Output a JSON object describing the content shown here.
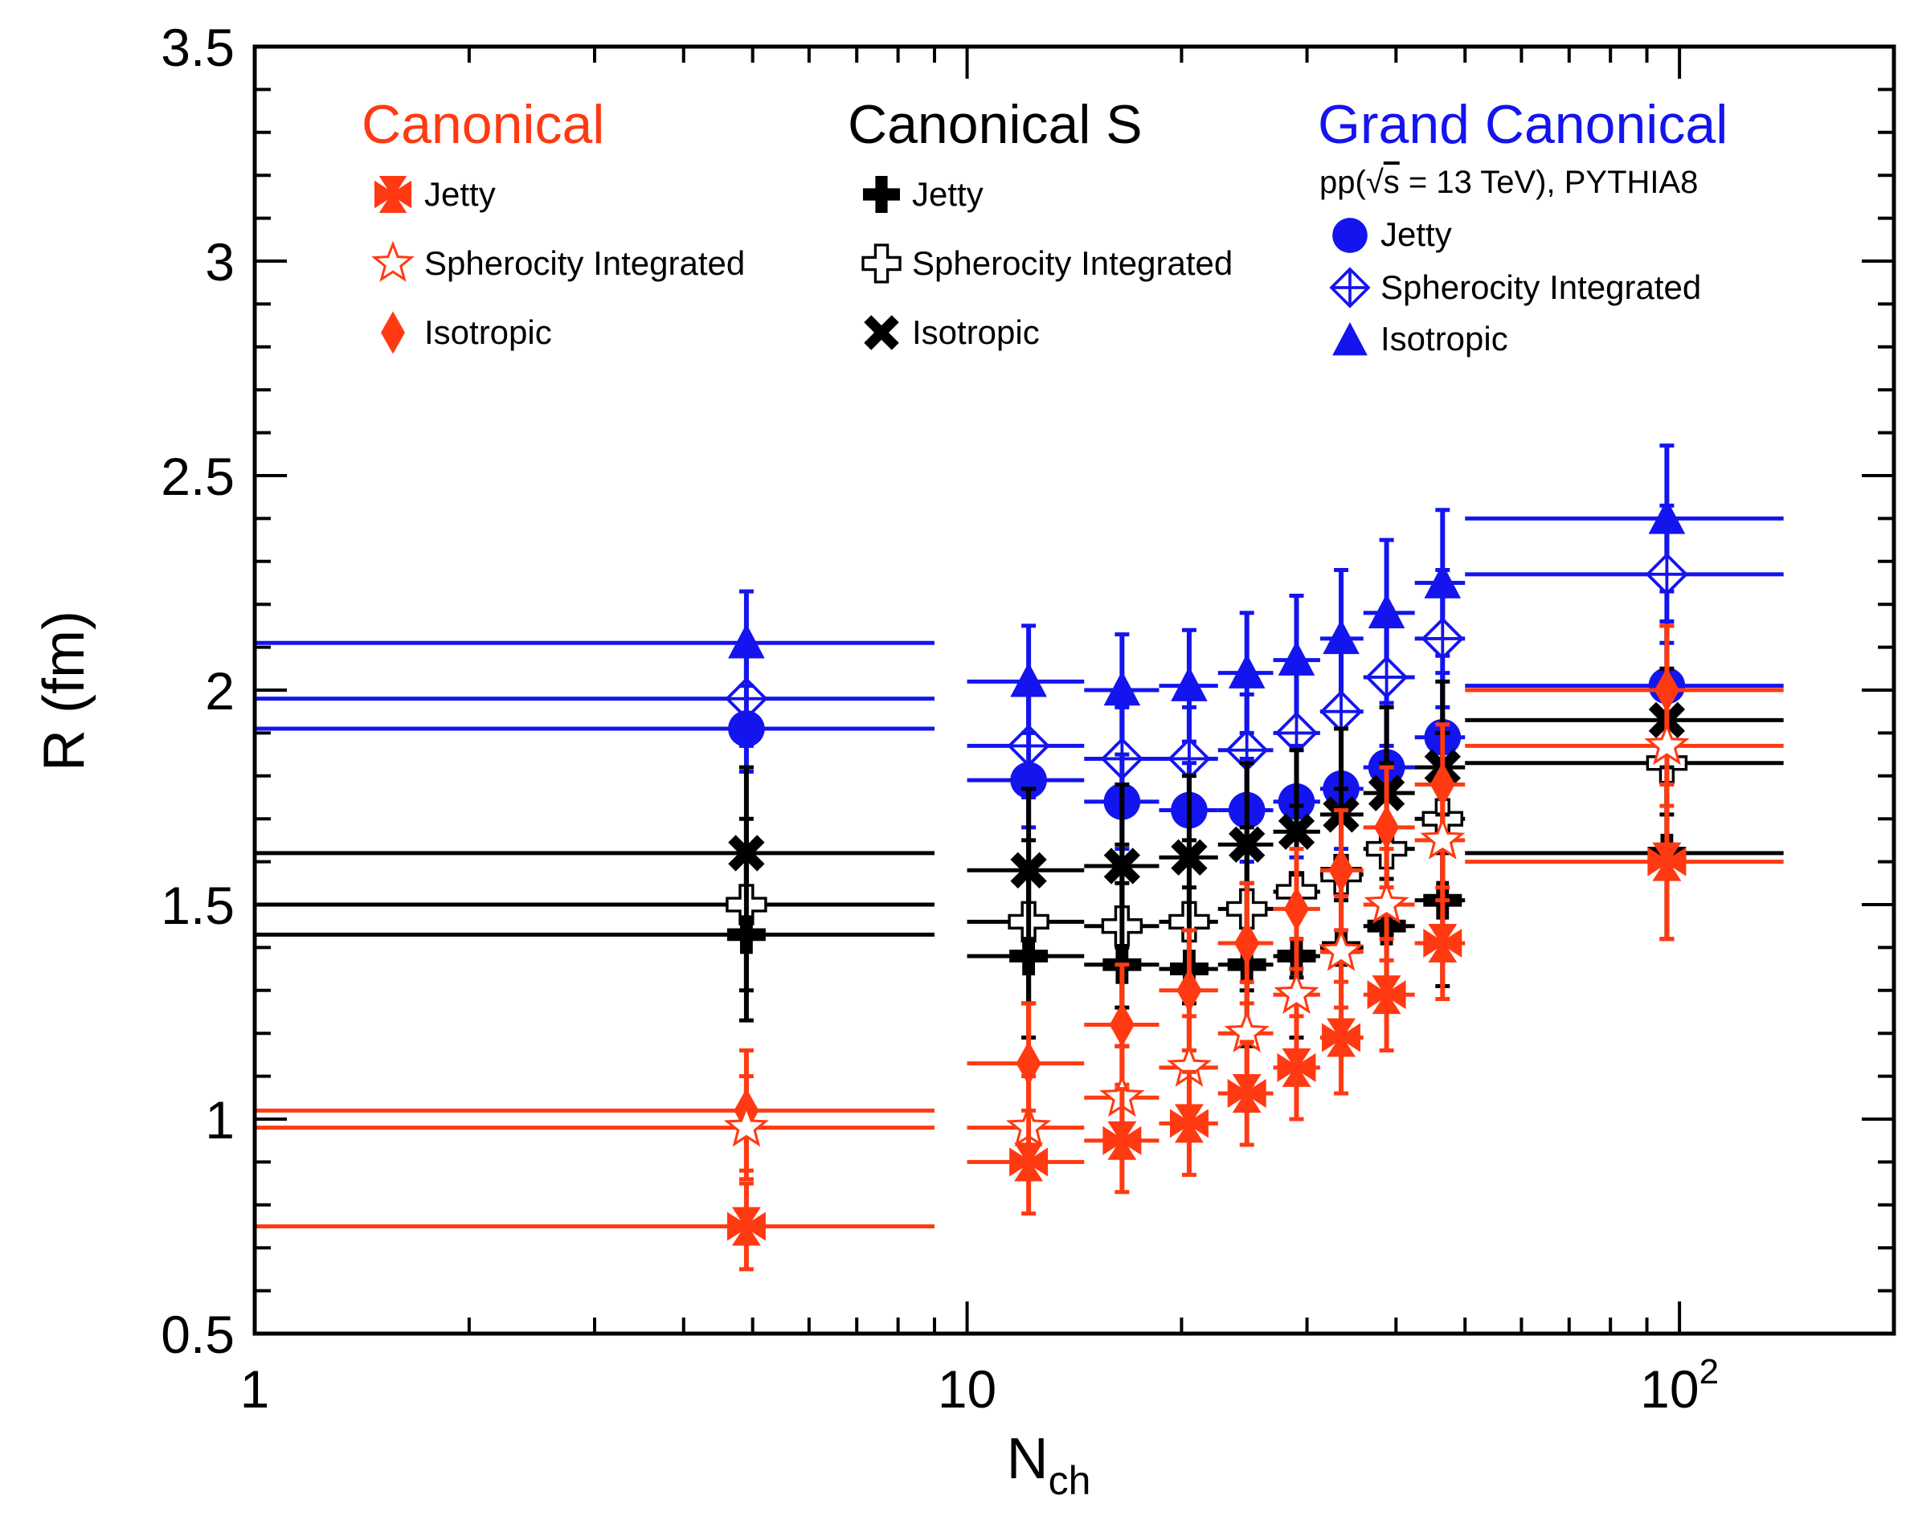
{
  "chart_data": {
    "type": "scatter",
    "xscale": "log",
    "xlim": [
      1,
      200
    ],
    "ylim": [
      0.5,
      3.5
    ],
    "xlabel": {
      "main": "N",
      "sub": "ch"
    },
    "ylabel": "R (fm)",
    "xticks": [
      {
        "value": 1,
        "base": "1",
        "exp": ""
      },
      {
        "value": 10,
        "base": "10",
        "exp": ""
      },
      {
        "value": 100,
        "base": "10",
        "exp": "2"
      }
    ],
    "yticks": [
      {
        "value": 0.5,
        "label": "0.5"
      },
      {
        "value": 1,
        "label": "1"
      },
      {
        "value": 1.5,
        "label": "1.5"
      },
      {
        "value": 2,
        "label": "2"
      },
      {
        "value": 2.5,
        "label": "2.5"
      },
      {
        "value": 3,
        "label": "3"
      },
      {
        "value": 3.5,
        "label": "3.5"
      }
    ],
    "colors": {
      "canonical": "#ff3a12",
      "canonical_s": "#000000",
      "grand_canonical": "#1414ee"
    },
    "x_bins": [
      {
        "x": 4.9,
        "xlo": 1.0,
        "xhi": 9.0
      },
      {
        "x": 12.2,
        "xlo": 10.0,
        "xhi": 14.6
      },
      {
        "x": 16.5,
        "xlo": 14.6,
        "xhi": 18.6
      },
      {
        "x": 20.5,
        "xlo": 18.6,
        "xhi": 22.5
      },
      {
        "x": 24.7,
        "xlo": 22.5,
        "xhi": 26.9
      },
      {
        "x": 29.0,
        "xlo": 26.9,
        "xhi": 31.3
      },
      {
        "x": 33.5,
        "xlo": 31.3,
        "xhi": 36.0
      },
      {
        "x": 38.8,
        "xlo": 36.0,
        "xhi": 42.5
      },
      {
        "x": 46.5,
        "xlo": 42.5,
        "xhi": 50.0
      },
      {
        "x": 96.0,
        "xlo": 50.0,
        "xhi": 140.0
      }
    ],
    "legend": {
      "groups": [
        {
          "id": "canonical",
          "title": "Canonical",
          "entries": [
            "Jetty",
            "Spherocity Integrated",
            "Isotropic"
          ]
        },
        {
          "id": "canonical_s",
          "title": "Canonical S",
          "entries": [
            "Jetty",
            "Spherocity Integrated",
            "Isotropic"
          ]
        },
        {
          "id": "grand_canonical",
          "title": "Grand Canonical",
          "subtitle_pre": "pp(",
          "subtitle_sqrt": "s",
          "subtitle_post": " = 13 TeV), PYTHIA8",
          "entries": [
            "Jetty",
            "Spherocity Integrated",
            "Isotropic"
          ]
        }
      ]
    },
    "series": [
      {
        "group": "grand_canonical",
        "name": "Isotropic",
        "marker": "triangle",
        "y": [
          2.11,
          2.02,
          2.0,
          2.01,
          2.04,
          2.07,
          2.12,
          2.18,
          2.25,
          2.4
        ],
        "err": [
          0.12,
          0.13,
          0.13,
          0.13,
          0.14,
          0.15,
          0.16,
          0.17,
          0.17,
          0.17
        ]
      },
      {
        "group": "grand_canonical",
        "name": "Spherocity Integrated",
        "marker": "diamond-open",
        "y": [
          1.98,
          1.87,
          1.84,
          1.84,
          1.86,
          1.9,
          1.95,
          2.03,
          2.12,
          2.27
        ],
        "err": [
          0.11,
          0.12,
          0.12,
          0.12,
          0.13,
          0.14,
          0.15,
          0.16,
          0.16,
          0.16
        ]
      },
      {
        "group": "grand_canonical",
        "name": "Jetty",
        "marker": "circle",
        "y": [
          1.91,
          1.79,
          1.74,
          1.72,
          1.72,
          1.74,
          1.77,
          1.82,
          1.89,
          2.01
        ],
        "err": [
          0.1,
          0.11,
          0.11,
          0.11,
          0.12,
          0.13,
          0.14,
          0.15,
          0.15,
          0.15
        ]
      },
      {
        "group": "canonical_s",
        "name": "Isotropic",
        "marker": "x-thick",
        "y": [
          1.62,
          1.58,
          1.59,
          1.61,
          1.64,
          1.67,
          1.71,
          1.76,
          1.82,
          1.93
        ],
        "err": [
          0.2,
          0.19,
          0.19,
          0.19,
          0.19,
          0.19,
          0.2,
          0.2,
          0.2,
          0.22
        ]
      },
      {
        "group": "canonical_s",
        "name": "Spherocity Integrated",
        "marker": "cross-open",
        "y": [
          1.5,
          1.46,
          1.45,
          1.46,
          1.49,
          1.53,
          1.57,
          1.63,
          1.7,
          1.83
        ],
        "err": [
          0.2,
          0.19,
          0.19,
          0.19,
          0.19,
          0.2,
          0.2,
          0.2,
          0.2,
          0.22
        ]
      },
      {
        "group": "canonical_s",
        "name": "Jetty",
        "marker": "cross",
        "y": [
          1.43,
          1.38,
          1.36,
          1.35,
          1.36,
          1.38,
          1.4,
          1.45,
          1.51,
          1.62
        ],
        "err": [
          0.2,
          0.19,
          0.19,
          0.19,
          0.19,
          0.19,
          0.2,
          0.2,
          0.2,
          0.2
        ]
      },
      {
        "group": "canonical",
        "name": "Isotropic",
        "marker": "diamond",
        "y": [
          1.02,
          1.13,
          1.22,
          1.3,
          1.41,
          1.49,
          1.58,
          1.68,
          1.78,
          2.0
        ],
        "err": [
          0.14,
          0.14,
          0.14,
          0.14,
          0.14,
          0.14,
          0.14,
          0.14,
          0.14,
          0.15
        ]
      },
      {
        "group": "canonical",
        "name": "Spherocity Integrated",
        "marker": "star-open",
        "y": [
          0.98,
          0.98,
          1.05,
          1.12,
          1.2,
          1.29,
          1.39,
          1.5,
          1.65,
          1.87
        ],
        "err": [
          0.12,
          0.12,
          0.12,
          0.12,
          0.12,
          0.13,
          0.13,
          0.13,
          0.14,
          0.14
        ]
      },
      {
        "group": "canonical",
        "name": "Jetty",
        "marker": "pinwheel",
        "y": [
          0.75,
          0.9,
          0.95,
          0.99,
          1.06,
          1.12,
          1.19,
          1.29,
          1.41,
          1.6
        ],
        "err": [
          0.1,
          0.12,
          0.12,
          0.12,
          0.12,
          0.12,
          0.13,
          0.13,
          0.13,
          0.18
        ]
      }
    ]
  }
}
